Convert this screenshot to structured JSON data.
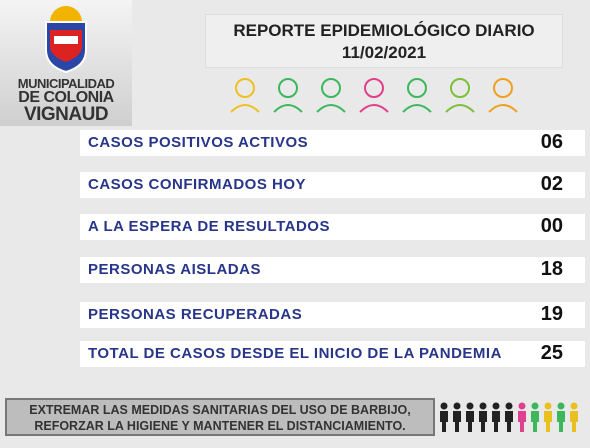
{
  "logo": {
    "lines": [
      "MUNICIPALIDAD",
      "DE COLONIA",
      "VIGNAUD"
    ]
  },
  "header": {
    "title": "REPORTE EPIDEMIOLÓGICO DIARIO",
    "date": "11/02/2021"
  },
  "rows": [
    {
      "label": "CASOS POSITIVOS ACTIVOS",
      "value": "06"
    },
    {
      "label": "CASOS CONFIRMADOS HOY",
      "value": "02"
    },
    {
      "label": "A LA ESPERA DE RESULTADOS",
      "value": "00"
    },
    {
      "label": "PERSONAS AISLADAS",
      "value": "18"
    },
    {
      "label": "PERSONAS RECUPERADAS",
      "value": "19"
    },
    {
      "label": "TOTAL DE CASOS DESDE EL INICIO DE LA PANDEMIA",
      "value": "25"
    }
  ],
  "footer": {
    "lines": [
      "EXTREMAR LAS MEDIDAS SANITARIAS DEL USO DE BARBIJO,",
      "REFORZAR LA HIGIENE Y MANTENER EL DISTANCIAMIENTO."
    ]
  }
}
